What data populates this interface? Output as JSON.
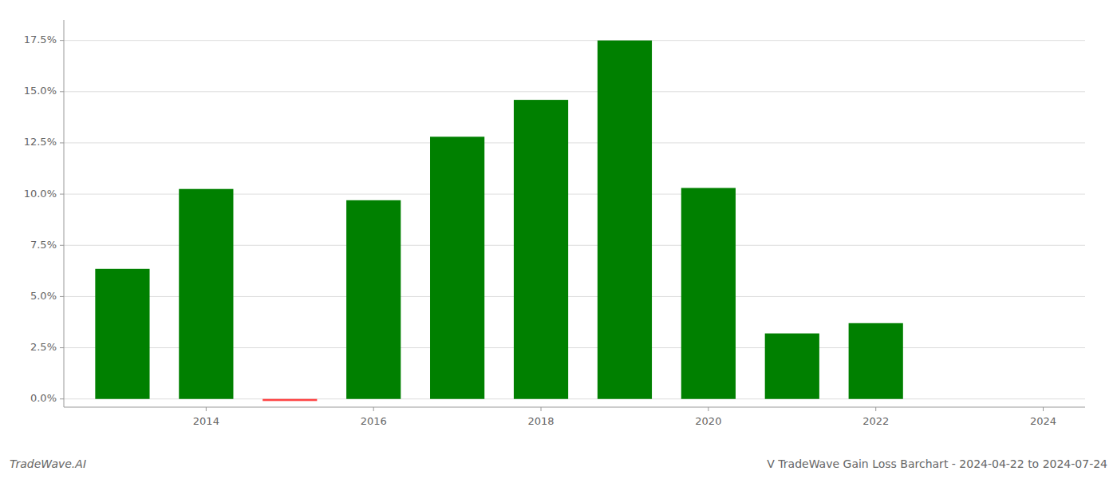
{
  "chart_data": {
    "type": "bar",
    "title": "V TradeWave Gain Loss Barchart - 2024-04-22 to 2024-07-24",
    "annotations": [
      "TradeWave.AI"
    ],
    "x": [
      2013,
      2014,
      2015,
      2016,
      2017,
      2018,
      2019,
      2020,
      2021,
      2022,
      2023
    ],
    "values": [
      0.0635,
      0.1025,
      -0.001,
      0.097,
      0.128,
      0.146,
      0.175,
      0.103,
      0.032,
      0.037,
      0.0
    ],
    "colors": [
      "#008000",
      "#008000",
      "#FF4444",
      "#008000",
      "#008000",
      "#008000",
      "#008000",
      "#008000",
      "#008000",
      "#008000",
      null
    ],
    "xlim": [
      2012.3,
      2024.5
    ],
    "xticks": [
      2014,
      2016,
      2018,
      2020,
      2022,
      2024
    ],
    "ylim": [
      -0.004,
      0.185
    ],
    "yticks": [
      {
        "value": 0.0,
        "label": "0.0%"
      },
      {
        "value": 0.025,
        "label": "2.5%"
      },
      {
        "value": 0.05,
        "label": "5.0%"
      },
      {
        "value": 0.075,
        "label": "7.5%"
      },
      {
        "value": 0.1,
        "label": "10.0%"
      },
      {
        "value": 0.125,
        "label": "12.5%"
      },
      {
        "value": 0.15,
        "label": "15.0%"
      },
      {
        "value": 0.175,
        "label": "17.5%"
      }
    ],
    "grid": true
  }
}
